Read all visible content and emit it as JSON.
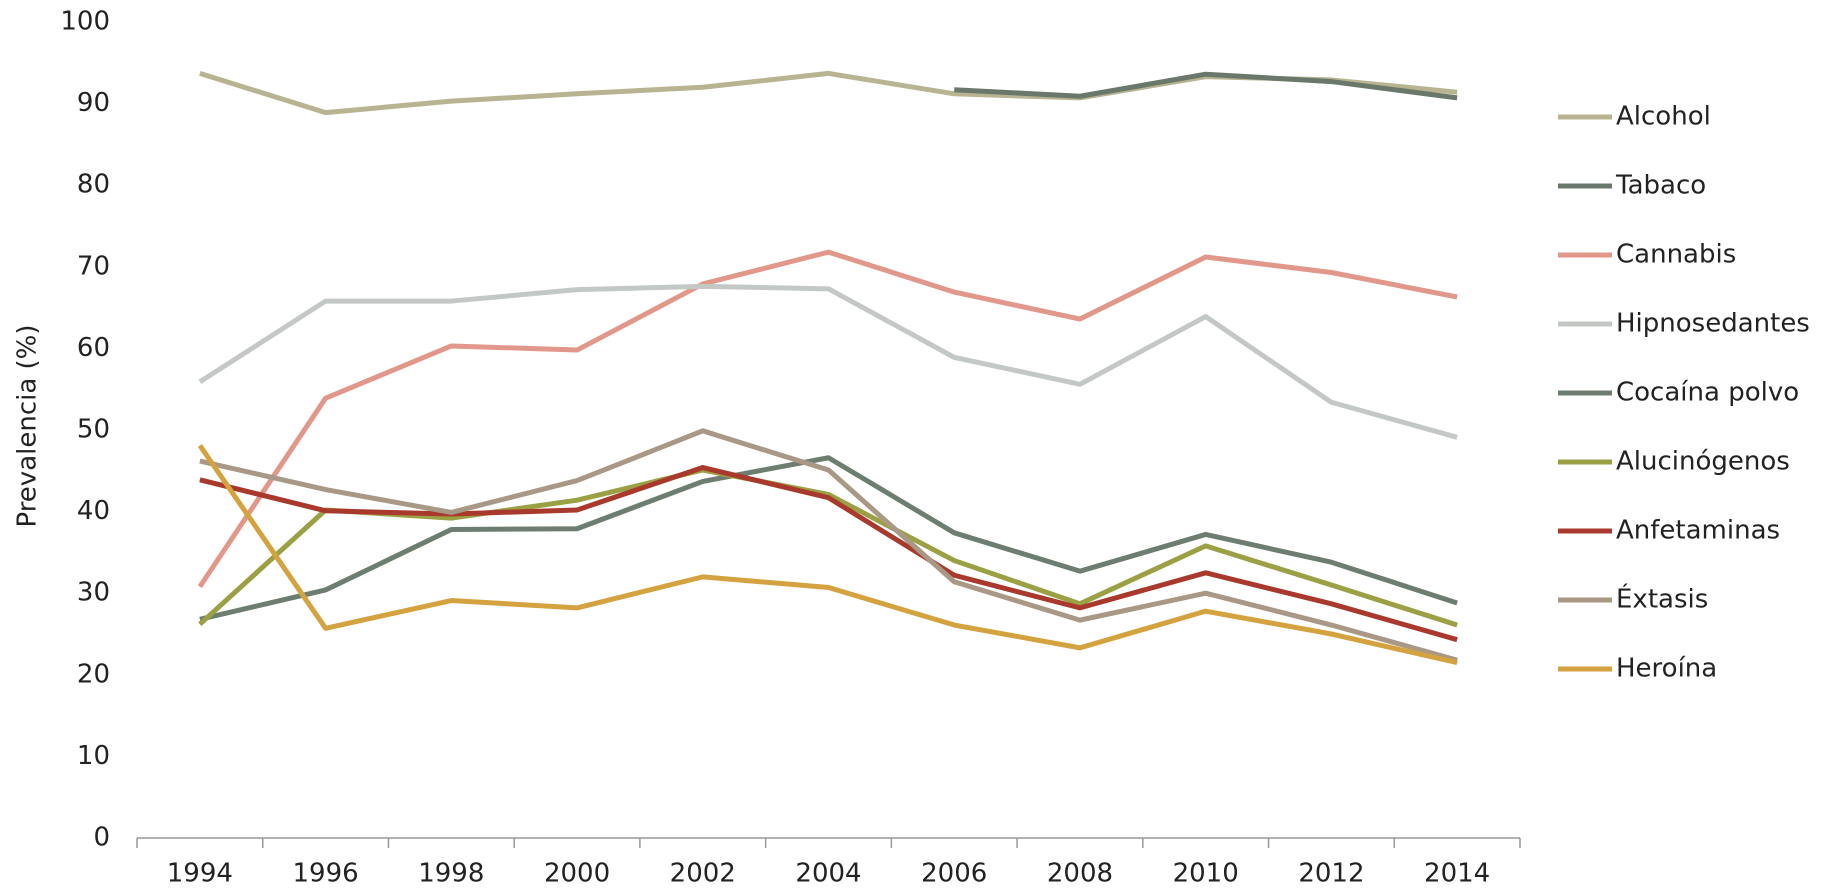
{
  "chart_data": {
    "type": "line",
    "y_label": "Prevalencia (%)",
    "categories": [
      "1994",
      "1996",
      "1998",
      "2000",
      "2002",
      "2004",
      "2006",
      "2008",
      "2010",
      "2012",
      "2014"
    ],
    "ylim": [
      0,
      100
    ],
    "yticks": [
      0,
      10,
      20,
      30,
      40,
      50,
      60,
      70,
      80,
      90,
      100
    ],
    "grid": false,
    "legend": "right",
    "series": [
      {
        "name": "Alcohol",
        "color": "#b8b391",
        "values": [
          93.7,
          88.9,
          90.3,
          91.2,
          92.0,
          93.7,
          91.2,
          90.7,
          93.3,
          92.9,
          91.4
        ]
      },
      {
        "name": "Tabaco",
        "color": "#6a786c",
        "values": [
          null,
          null,
          null,
          null,
          null,
          null,
          91.7,
          90.9,
          93.6,
          92.7,
          90.7
        ]
      },
      {
        "name": "Cannabis",
        "color": "#e2978b",
        "values": [
          30.8,
          53.9,
          60.3,
          59.8,
          67.9,
          71.8,
          66.9,
          63.6,
          71.2,
          69.3,
          66.3
        ]
      },
      {
        "name": "Hipnosedantes",
        "color": "#c4c8c5",
        "values": [
          55.9,
          65.8,
          65.8,
          67.2,
          67.6,
          67.3,
          58.9,
          55.6,
          63.9,
          53.4,
          49.1
        ]
      },
      {
        "name": "Cocaína polvo",
        "color": "#6d7e71",
        "values": [
          26.8,
          30.4,
          37.8,
          37.9,
          43.7,
          46.6,
          37.4,
          32.7,
          37.2,
          33.8,
          28.8
        ]
      },
      {
        "name": "Alucinógenos",
        "color": "#9aa043",
        "values": [
          26.2,
          40.2,
          39.2,
          41.4,
          45.1,
          42.1,
          34.0,
          28.7,
          35.8,
          31.0,
          26.1
        ]
      },
      {
        "name": "Anfetaminas",
        "color": "#a8392c",
        "values": [
          43.9,
          40.1,
          39.7,
          40.2,
          45.4,
          41.7,
          32.2,
          28.2,
          32.5,
          28.7,
          24.3
        ]
      },
      {
        "name": "Éxtasis",
        "color": "#a89885",
        "values": [
          46.2,
          42.7,
          39.9,
          43.8,
          49.9,
          45.1,
          31.4,
          26.7,
          30.0,
          26.1,
          21.8
        ]
      },
      {
        "name": "Heroína",
        "color": "#d4a23f",
        "values": [
          48.1,
          25.7,
          29.1,
          28.2,
          32.0,
          30.7,
          26.1,
          23.3,
          27.8,
          25.0,
          21.5
        ]
      }
    ]
  }
}
